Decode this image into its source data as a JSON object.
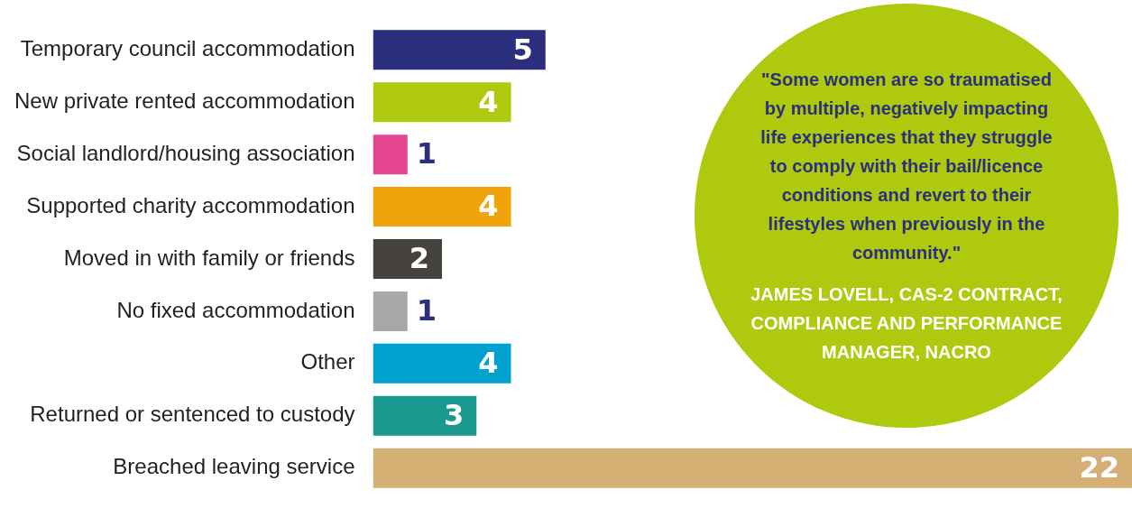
{
  "chart_data": {
    "type": "bar",
    "orientation": "horizontal",
    "data_labels": true,
    "categories": [
      "Temporary council accommodation",
      "New private rented accommodation",
      "Social landlord/housing association",
      "Supported charity accommodation",
      "Moved in with family or friends",
      "No fixed accommodation",
      "Other",
      "Returned or sentenced to custody",
      "Breached leaving service"
    ],
    "values": [
      5,
      4,
      1,
      4,
      2,
      1,
      4,
      3,
      22
    ],
    "colors": [
      "#2b2f7e",
      "#aec90e",
      "#e5448f",
      "#f0a30a",
      "#46423e",
      "#a7a8aa",
      "#00a1ce",
      "#1a9a8e",
      "#d5b075"
    ],
    "annotations": [
      "\"Some women are so traumatised by multiple, negatively impacting life experiences that they struggle to comply with their bail/licence conditions and revert to their lifestyles when previously in the community.\"",
      "JAMES LOVELL, CAS-2 CONTRACT, COMPLIANCE AND PERFORMANCE MANAGER, NACRO"
    ]
  }
}
